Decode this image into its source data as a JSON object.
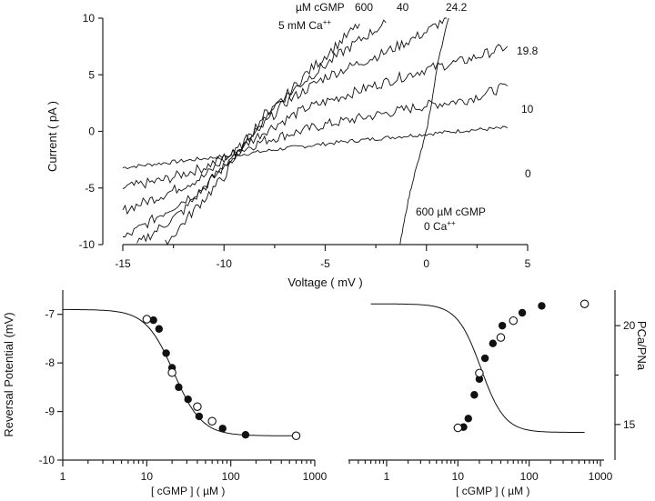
{
  "chart_data": [
    {
      "type": "line",
      "title": "",
      "xlabel": "Voltage    ( mV )",
      "ylabel": "Current    ( pA )",
      "xlim": [
        -15,
        5
      ],
      "ylim": [
        -10,
        10
      ],
      "xticks": [
        -15,
        -10,
        -5,
        0,
        5
      ],
      "yticks": [
        -10,
        -5,
        0,
        5,
        10
      ],
      "annotations": {
        "header": "µM cGMP",
        "ca_label": "5 mM Ca",
        "ca_sup": "++",
        "zero_ca_line1": "600 µM cGMP",
        "zero_ca_line2": "0 Ca",
        "zero_ca_sup": "++"
      },
      "series": [
        {
          "name": "0",
          "label": "0",
          "points": [
            [
              -15,
              -3.2
            ],
            [
              -12,
              -2.6
            ],
            [
              -9,
              -2.0
            ],
            [
              -7,
              -1.5
            ],
            [
              -4,
              -0.9
            ],
            [
              -1,
              -0.4
            ],
            [
              2,
              0.1
            ],
            [
              4,
              0.3
            ]
          ]
        },
        {
          "name": "10",
          "label": "10",
          "points": [
            [
              -15,
              -5
            ],
            [
              -13,
              -4.3
            ],
            [
              -11,
              -3.2
            ],
            [
              -10,
              -2.3
            ],
            [
              -8,
              -0.8
            ],
            [
              -5,
              0.6
            ],
            [
              -2,
              1.6
            ],
            [
              0,
              2.3
            ],
            [
              2,
              2.8
            ],
            [
              4,
              4
            ]
          ]
        },
        {
          "name": "19.8",
          "label": "19.8",
          "points": [
            [
              -15,
              -7
            ],
            [
              -13,
              -5.6
            ],
            [
              -11,
              -4
            ],
            [
              -10,
              -2.5
            ],
            [
              -8,
              0
            ],
            [
              -6,
              2
            ],
            [
              -3,
              3.8
            ],
            [
              0,
              5.5
            ],
            [
              2,
              6.3
            ],
            [
              4,
              7.5
            ]
          ]
        },
        {
          "name": "24.2",
          "label": "24.2",
          "points": [
            [
              -15,
              -9.5
            ],
            [
              -13,
              -7.2
            ],
            [
              -11,
              -5
            ],
            [
              -9.5,
              -2.2
            ],
            [
              -7,
              2.5
            ],
            [
              -5,
              4.8
            ],
            [
              -2,
              7
            ],
            [
              0,
              8.8
            ],
            [
              1,
              10
            ]
          ]
        },
        {
          "name": "40",
          "label": "40",
          "points": [
            [
              -14.3,
              -10
            ],
            [
              -12,
              -7
            ],
            [
              -10.5,
              -4
            ],
            [
              -9,
              -1
            ],
            [
              -8,
              1.5
            ],
            [
              -6,
              4.5
            ],
            [
              -4,
              7.2
            ],
            [
              -2,
              9.6
            ]
          ]
        },
        {
          "name": "600",
          "label": "600",
          "points": [
            [
              -12.9,
              -10
            ],
            [
              -11.5,
              -7
            ],
            [
              -10,
              -4
            ],
            [
              -9,
              -1
            ],
            [
              -7.5,
              2
            ],
            [
              -6,
              5
            ],
            [
              -4.5,
              7.5
            ],
            [
              -3.3,
              9.5
            ]
          ]
        },
        {
          "name": "600 µM cGMP 0 Ca",
          "label": "",
          "points": [
            [
              -1.3,
              -10
            ],
            [
              -1,
              -7
            ],
            [
              -0.7,
              -4.5
            ],
            [
              -0.3,
              -2
            ],
            [
              0,
              0
            ],
            [
              0.3,
              3
            ],
            [
              0.6,
              6.5
            ],
            [
              1.1,
              10
            ]
          ]
        }
      ]
    },
    {
      "type": "scatter",
      "xlabel": "[ cGMP ]    ( µM )",
      "ylabel": "Reversal Potential  (mV)",
      "xscale": "log",
      "xlim": [
        1,
        1000
      ],
      "ylim": [
        -10,
        -6.5
      ],
      "xticks": [
        1,
        10,
        100,
        1000
      ],
      "yticks": [
        -10,
        -9,
        -8,
        -7
      ],
      "fit": {
        "top": -6.9,
        "bottom": -9.5,
        "ec50": 21,
        "hill": 2.6
      },
      "filled": [
        [
          12,
          -7.12
        ],
        [
          14,
          -7.3
        ],
        [
          17,
          -7.8
        ],
        [
          20,
          -8.1
        ],
        [
          24,
          -8.5
        ],
        [
          31,
          -8.75
        ],
        [
          42,
          -9.1
        ],
        [
          80,
          -9.35
        ],
        [
          150,
          -9.48
        ]
      ],
      "open": [
        [
          10,
          -7.1
        ],
        [
          20,
          -8.2
        ],
        [
          40,
          -8.9
        ],
        [
          60,
          -9.2
        ],
        [
          600,
          -9.5
        ]
      ]
    },
    {
      "type": "scatter",
      "xlabel": "[ cGMP ]    ( µM )",
      "ylabel": "PCa/PNa",
      "yaxis_side": "right",
      "xscale": "log",
      "xlim": [
        0.6,
        1000
      ],
      "ylim": [
        13.2,
        21.8
      ],
      "xticks": [
        1,
        10,
        100,
        1000
      ],
      "yticks": [
        15,
        20
      ],
      "fit": {
        "top": 21.1,
        "bottom": 14.6,
        "ec50": 21,
        "hill": 2.6
      },
      "filled": [
        [
          12,
          14.87
        ],
        [
          14,
          15.3
        ],
        [
          17,
          16.5
        ],
        [
          20,
          17.3
        ],
        [
          24,
          18.35
        ],
        [
          31,
          19.1
        ],
        [
          42,
          20.0
        ],
        [
          80,
          20.65
        ],
        [
          150,
          21.0
        ]
      ],
      "open": [
        [
          10,
          14.83
        ],
        [
          20,
          17.6
        ],
        [
          40,
          19.4
        ],
        [
          60,
          20.25
        ],
        [
          600,
          21.1
        ]
      ]
    }
  ]
}
